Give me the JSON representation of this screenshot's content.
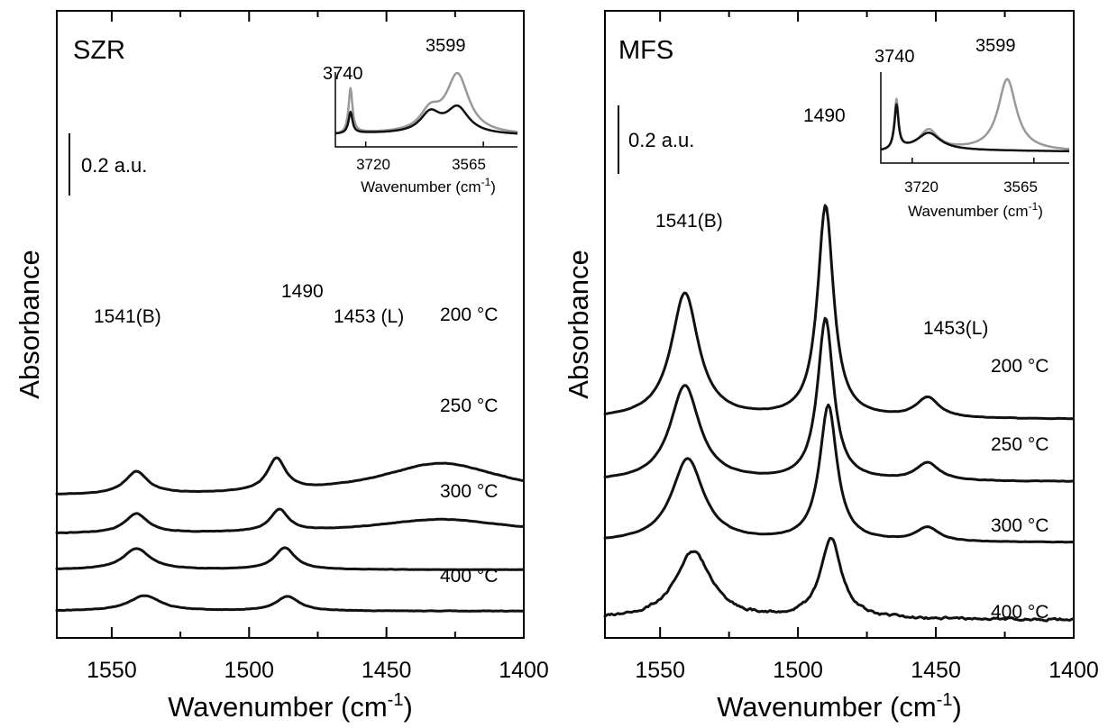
{
  "figure": {
    "ylabel": "Absorbance",
    "xlabel_main": "Wavenumber (cm",
    "xlabel_sup": "-1",
    "xlabel_close": ")"
  },
  "chart_data": [
    {
      "type": "line",
      "panel": "SZR",
      "xlim": [
        1570,
        1400
      ],
      "x_ticks": [
        1550,
        1500,
        1450,
        1400
      ],
      "x_minor_ticks": [
        1525,
        1475,
        1425
      ],
      "scale_bar": "0.2 a.u.",
      "series": [
        {
          "name": "200 °C",
          "baseline": 1.55,
          "peaks": [
            [
              1541,
              0.28,
              5
            ],
            [
              1490,
              0.4,
              4
            ],
            [
              1430,
              0.4,
              28
            ]
          ],
          "noise": 0.004
        },
        {
          "name": "250 °C",
          "baseline": 1.08,
          "peaks": [
            [
              1541,
              0.24,
              5
            ],
            [
              1489,
              0.27,
              4
            ],
            [
              1430,
              0.18,
              30
            ]
          ],
          "noise": 0.004
        },
        {
          "name": "300 °C",
          "baseline": 0.64,
          "peaks": [
            [
              1541,
              0.26,
              6
            ],
            [
              1487,
              0.27,
              4.5
            ]
          ],
          "noise": 0.003
        },
        {
          "name": "400 °C",
          "baseline": 0.13,
          "peaks": [
            [
              1538,
              0.19,
              7
            ],
            [
              1486,
              0.18,
              5
            ]
          ],
          "noise": 0.004
        }
      ],
      "annotations": [
        "1541(B)",
        "1490",
        "1453 (L)"
      ],
      "inset": {
        "xlim": [
          3760,
          3520
        ],
        "x_ticks": [
          3720,
          3565
        ],
        "x_ticks_labels": [
          "3720",
          "3565"
        ],
        "xlabel_main": "Wavenumber (cm",
        "xlabel_sup": "-1",
        "xlabel_close": ")",
        "annotations": [
          "3740",
          "3599"
        ],
        "series": [
          {
            "color": "#999999",
            "peaks": [
              [
                3740,
                0.72,
                3
              ],
              [
                3635,
                0.32,
                16
              ],
              [
                3599,
                0.95,
                18
              ]
            ]
          },
          {
            "color": "#111111",
            "peaks": [
              [
                3740,
                0.34,
                3
              ],
              [
                3635,
                0.32,
                16
              ],
              [
                3599,
                0.42,
                18
              ]
            ]
          }
        ]
      }
    },
    {
      "type": "line",
      "panel": "MFS",
      "xlim": [
        1570,
        1400
      ],
      "x_ticks": [
        1550,
        1500,
        1450,
        1400
      ],
      "x_minor_ticks": [
        1525,
        1475,
        1425
      ],
      "scale_bar": "0.2 a.u.",
      "series": [
        {
          "name": "200 °C",
          "baseline": 2.85,
          "peaks": [
            [
              1541,
              1.55,
              6
            ],
            [
              1490,
              2.62,
              3.5
            ],
            [
              1453,
              0.25,
              5
            ]
          ],
          "noise": 0.004
        },
        {
          "name": "250 °C",
          "baseline": 2.08,
          "peaks": [
            [
              1541,
              1.18,
              6.5
            ],
            [
              1490,
              2.0,
              3.5
            ],
            [
              1453,
              0.22,
              5
            ]
          ],
          "noise": 0.004
        },
        {
          "name": "300 °C",
          "baseline": 1.33,
          "peaks": [
            [
              1540,
              1.03,
              7
            ],
            [
              1489,
              1.68,
              3.8
            ],
            [
              1453,
              0.17,
              5
            ]
          ],
          "noise": 0.004
        },
        {
          "name": "400 °C",
          "baseline": 0.38,
          "peaks": [
            [
              1538,
              0.83,
              8
            ],
            [
              1488,
              1.0,
              4.5
            ]
          ],
          "noise": 0.025
        }
      ],
      "annotations": [
        "1541(B)",
        "1490",
        "1453(L)"
      ],
      "inset": {
        "xlim": [
          3760,
          3520
        ],
        "x_ticks": [
          3720,
          3565
        ],
        "x_ticks_labels": [
          "3720",
          "3565"
        ],
        "xlabel_main": "Wavenumber (cm",
        "xlabel_sup": "-1",
        "xlabel_close": ")",
        "annotations": [
          "3740",
          "3599"
        ],
        "series": [
          {
            "color": "#999999",
            "peaks": [
              [
                3740,
                0.62,
                3
              ],
              [
                3699,
                0.25,
                14
              ],
              [
                3599,
                0.92,
                14
              ]
            ]
          },
          {
            "color": "#111111",
            "peaks": [
              [
                3740,
                0.55,
                3
              ],
              [
                3699,
                0.22,
                18
              ]
            ]
          }
        ]
      }
    }
  ]
}
